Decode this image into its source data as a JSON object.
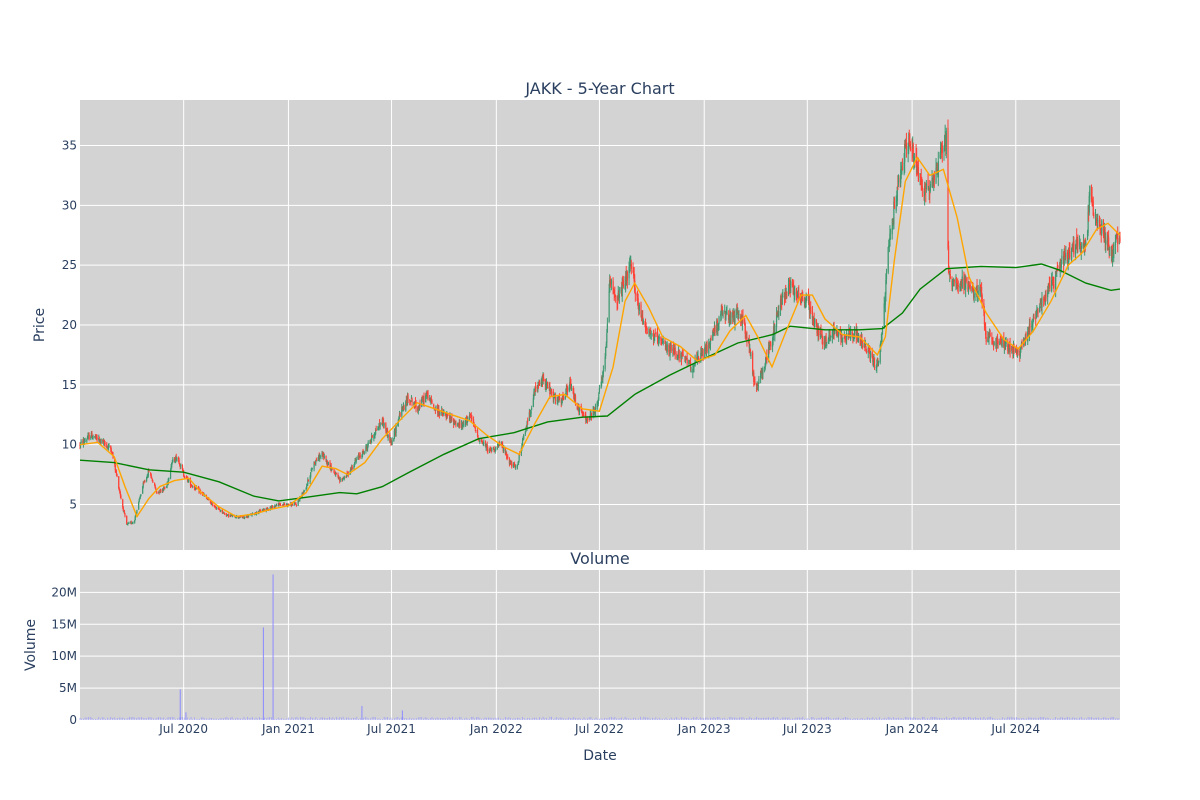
{
  "chart_data": {
    "type": "candlestick",
    "title": "JAKK - 5-Year Chart",
    "ylabel": "Price",
    "volume_title": "Volume",
    "volume_ylabel": "Volume",
    "xlabel": "Date",
    "x_range": [
      "2020-01-01",
      "2024-12-31"
    ],
    "price_ylim": [
      1.2,
      38.8
    ],
    "price_yticks": [
      5,
      10,
      15,
      20,
      25,
      30,
      35
    ],
    "volume_ylim": [
      0,
      23500000
    ],
    "volume_yticks": [
      0,
      5000000,
      10000000,
      15000000,
      20000000
    ],
    "volume_ytick_labels": [
      "0",
      "5M",
      "10M",
      "15M",
      "20M"
    ],
    "xticks": [
      "2020-07-01",
      "2021-01-01",
      "2021-07-01",
      "2022-01-01",
      "2022-07-01",
      "2023-01-01",
      "2023-07-01",
      "2024-01-01",
      "2024-07-01"
    ],
    "xtick_labels": [
      "Jul 2020",
      "Jan 2021",
      "Jul 2021",
      "Jan 2022",
      "Jul 2022",
      "Jan 2023",
      "Jul 2023",
      "Jan 2024",
      "Jul 2024"
    ],
    "grid": true,
    "colors": {
      "increasing": "#3d9970",
      "decreasing": "#ff4136",
      "ma_short": "#ffa500",
      "ma_long": "#008000",
      "volume_bar": "#8b8bff",
      "plot_bg": "#d3d3d3",
      "grid": "#ffffff",
      "text": "#2a3f5f"
    },
    "price_path": [
      [
        "2020-01-01",
        10.0
      ],
      [
        "2020-01-20",
        10.8
      ],
      [
        "2020-02-10",
        10.2
      ],
      [
        "2020-02-25",
        9.6
      ],
      [
        "2020-03-05",
        7.5
      ],
      [
        "2020-03-15",
        5.0
      ],
      [
        "2020-03-23",
        3.3
      ],
      [
        "2020-04-05",
        3.6
      ],
      [
        "2020-04-20",
        6.5
      ],
      [
        "2020-05-01",
        7.8
      ],
      [
        "2020-05-15",
        6.0
      ],
      [
        "2020-06-01",
        6.5
      ],
      [
        "2020-06-10",
        8.5
      ],
      [
        "2020-06-20",
        9.0
      ],
      [
        "2020-07-01",
        7.5
      ],
      [
        "2020-07-15",
        6.6
      ],
      [
        "2020-08-01",
        6.0
      ],
      [
        "2020-08-20",
        5.0
      ],
      [
        "2020-09-15",
        4.1
      ],
      [
        "2020-10-15",
        3.9
      ],
      [
        "2020-11-15",
        4.5
      ],
      [
        "2020-12-15",
        5.0
      ],
      [
        "2021-01-15",
        5.0
      ],
      [
        "2021-02-01",
        6.5
      ],
      [
        "2021-02-15",
        8.5
      ],
      [
        "2021-03-01",
        9.2
      ],
      [
        "2021-03-15",
        8.2
      ],
      [
        "2021-04-01",
        7.0
      ],
      [
        "2021-04-15",
        7.5
      ],
      [
        "2021-05-01",
        8.8
      ],
      [
        "2021-05-15",
        9.5
      ],
      [
        "2021-06-01",
        11.0
      ],
      [
        "2021-06-15",
        12.0
      ],
      [
        "2021-07-01",
        10.0
      ],
      [
        "2021-07-15",
        12.5
      ],
      [
        "2021-08-01",
        14.0
      ],
      [
        "2021-08-15",
        13.0
      ],
      [
        "2021-09-01",
        14.2
      ],
      [
        "2021-09-15",
        13.0
      ],
      [
        "2021-10-01",
        12.5
      ],
      [
        "2021-11-01",
        11.5
      ],
      [
        "2021-11-15",
        12.5
      ],
      [
        "2021-12-01",
        10.5
      ],
      [
        "2021-12-20",
        9.5
      ],
      [
        "2022-01-10",
        10.0
      ],
      [
        "2022-01-25",
        8.5
      ],
      [
        "2022-02-05",
        8.0
      ],
      [
        "2022-02-20",
        11.0
      ],
      [
        "2022-03-10",
        14.5
      ],
      [
        "2022-03-25",
        15.5
      ],
      [
        "2022-04-10",
        14.0
      ],
      [
        "2022-04-25",
        13.5
      ],
      [
        "2022-05-10",
        15.0
      ],
      [
        "2022-05-25",
        13.0
      ],
      [
        "2022-06-10",
        12.0
      ],
      [
        "2022-06-25",
        13.0
      ],
      [
        "2022-07-10",
        16.5
      ],
      [
        "2022-07-20",
        24.0
      ],
      [
        "2022-08-01",
        22.0
      ],
      [
        "2022-08-15",
        23.5
      ],
      [
        "2022-08-25",
        25.0
      ],
      [
        "2022-09-10",
        21.0
      ],
      [
        "2022-09-25",
        19.5
      ],
      [
        "2022-10-15",
        18.5
      ],
      [
        "2022-11-01",
        18.0
      ],
      [
        "2022-11-20",
        17.5
      ],
      [
        "2022-12-10",
        16.5
      ],
      [
        "2023-01-05",
        18.0
      ],
      [
        "2023-02-01",
        21.0
      ],
      [
        "2023-02-15",
        20.5
      ],
      [
        "2023-03-05",
        21.0
      ],
      [
        "2023-03-20",
        18.5
      ],
      [
        "2023-04-01",
        14.5
      ],
      [
        "2023-04-15",
        16.5
      ],
      [
        "2023-05-01",
        19.0
      ],
      [
        "2023-05-15",
        22.0
      ],
      [
        "2023-06-01",
        23.5
      ],
      [
        "2023-06-15",
        22.5
      ],
      [
        "2023-07-01",
        22.0
      ],
      [
        "2023-07-15",
        20.0
      ],
      [
        "2023-08-01",
        18.5
      ],
      [
        "2023-08-15",
        19.5
      ],
      [
        "2023-09-01",
        19.0
      ],
      [
        "2023-09-20",
        19.5
      ],
      [
        "2023-10-05",
        18.5
      ],
      [
        "2023-10-20",
        17.5
      ],
      [
        "2023-11-01",
        16.5
      ],
      [
        "2023-11-10",
        19.5
      ],
      [
        "2023-11-20",
        26.0
      ],
      [
        "2023-12-01",
        30.0
      ],
      [
        "2023-12-15",
        33.5
      ],
      [
        "2023-12-25",
        35.5
      ],
      [
        "2024-01-10",
        33.0
      ],
      [
        "2024-01-25",
        31.0
      ],
      [
        "2024-02-10",
        32.5
      ],
      [
        "2024-02-20",
        34.5
      ],
      [
        "2024-03-01",
        35.5
      ],
      [
        "2024-03-05",
        24.0
      ],
      [
        "2024-03-20",
        23.5
      ],
      [
        "2024-04-05",
        23.5
      ],
      [
        "2024-04-20",
        22.5
      ],
      [
        "2024-05-01",
        23.0
      ],
      [
        "2024-05-10",
        19.0
      ],
      [
        "2024-05-25",
        18.5
      ],
      [
        "2024-06-10",
        18.5
      ],
      [
        "2024-06-25",
        18.0
      ],
      [
        "2024-07-05",
        17.5
      ],
      [
        "2024-07-20",
        19.0
      ],
      [
        "2024-08-05",
        21.0
      ],
      [
        "2024-08-20",
        22.5
      ],
      [
        "2024-09-05",
        23.5
      ],
      [
        "2024-09-20",
        25.5
      ],
      [
        "2024-10-05",
        26.0
      ],
      [
        "2024-10-20",
        27.0
      ],
      [
        "2024-11-01",
        26.5
      ],
      [
        "2024-11-08",
        31.0
      ],
      [
        "2024-11-20",
        28.5
      ],
      [
        "2024-12-01",
        28.0
      ],
      [
        "2024-12-15",
        26.0
      ],
      [
        "2024-12-31",
        27.5
      ]
    ],
    "ma_short": [
      [
        "2020-01-01",
        10.0
      ],
      [
        "2020-02-01",
        10.2
      ],
      [
        "2020-03-01",
        9.0
      ],
      [
        "2020-03-20",
        6.5
      ],
      [
        "2020-04-10",
        4.0
      ],
      [
        "2020-05-01",
        5.5
      ],
      [
        "2020-05-20",
        6.5
      ],
      [
        "2020-06-15",
        7.0
      ],
      [
        "2020-07-10",
        7.2
      ],
      [
        "2020-08-01",
        6.0
      ],
      [
        "2020-09-01",
        4.8
      ],
      [
        "2020-10-01",
        4.0
      ],
      [
        "2020-11-01",
        4.2
      ],
      [
        "2020-12-01",
        4.6
      ],
      [
        "2021-01-01",
        4.9
      ],
      [
        "2021-02-01",
        6.0
      ],
      [
        "2021-03-01",
        8.2
      ],
      [
        "2021-03-25",
        8.0
      ],
      [
        "2021-04-15",
        7.5
      ],
      [
        "2021-05-15",
        8.5
      ],
      [
        "2021-06-15",
        10.5
      ],
      [
        "2021-07-15",
        12.0
      ],
      [
        "2021-08-15",
        13.5
      ],
      [
        "2021-09-15",
        13.0
      ],
      [
        "2021-10-15",
        12.5
      ],
      [
        "2021-11-15",
        12.0
      ],
      [
        "2021-12-15",
        10.8
      ],
      [
        "2022-01-15",
        9.8
      ],
      [
        "2022-02-10",
        9.2
      ],
      [
        "2022-03-10",
        11.8
      ],
      [
        "2022-04-05",
        14.0
      ],
      [
        "2022-05-01",
        14.2
      ],
      [
        "2022-06-01",
        13.0
      ],
      [
        "2022-07-01",
        12.8
      ],
      [
        "2022-07-25",
        16.5
      ],
      [
        "2022-08-15",
        22.0
      ],
      [
        "2022-09-01",
        23.5
      ],
      [
        "2022-09-25",
        21.5
      ],
      [
        "2022-10-20",
        19.0
      ],
      [
        "2022-11-20",
        18.2
      ],
      [
        "2022-12-20",
        17.0
      ],
      [
        "2023-01-20",
        17.5
      ],
      [
        "2023-02-15",
        19.5
      ],
      [
        "2023-03-15",
        20.8
      ],
      [
        "2023-04-05",
        19.0
      ],
      [
        "2023-04-30",
        16.5
      ],
      [
        "2023-05-25",
        19.5
      ],
      [
        "2023-06-20",
        22.5
      ],
      [
        "2023-07-10",
        22.5
      ],
      [
        "2023-08-01",
        20.5
      ],
      [
        "2023-09-01",
        19.2
      ],
      [
        "2023-10-01",
        19.0
      ],
      [
        "2023-11-01",
        17.5
      ],
      [
        "2023-11-15",
        19.0
      ],
      [
        "2023-12-01",
        25.5
      ],
      [
        "2023-12-20",
        32.0
      ],
      [
        "2024-01-10",
        34.0
      ],
      [
        "2024-02-01",
        32.5
      ],
      [
        "2024-02-25",
        33.0
      ],
      [
        "2024-03-20",
        29.0
      ],
      [
        "2024-04-10",
        24.0
      ],
      [
        "2024-05-10",
        21.0
      ],
      [
        "2024-06-10",
        18.8
      ],
      [
        "2024-07-05",
        18.0
      ],
      [
        "2024-08-01",
        19.5
      ],
      [
        "2024-09-01",
        22.0
      ],
      [
        "2024-10-01",
        25.0
      ],
      [
        "2024-10-25",
        26.0
      ],
      [
        "2024-11-20",
        28.0
      ],
      [
        "2024-12-10",
        28.5
      ],
      [
        "2024-12-31",
        27.5
      ]
    ],
    "ma_long": [
      [
        "2020-01-01",
        8.7
      ],
      [
        "2020-03-01",
        8.5
      ],
      [
        "2020-05-01",
        7.9
      ],
      [
        "2020-07-01",
        7.7
      ],
      [
        "2020-09-01",
        6.9
      ],
      [
        "2020-11-01",
        5.7
      ],
      [
        "2020-12-15",
        5.3
      ],
      [
        "2021-02-01",
        5.6
      ],
      [
        "2021-04-01",
        6.0
      ],
      [
        "2021-05-01",
        5.9
      ],
      [
        "2021-06-15",
        6.5
      ],
      [
        "2021-08-01",
        7.7
      ],
      [
        "2021-10-01",
        9.2
      ],
      [
        "2021-12-01",
        10.5
      ],
      [
        "2022-02-01",
        11.0
      ],
      [
        "2022-04-01",
        11.9
      ],
      [
        "2022-06-01",
        12.3
      ],
      [
        "2022-07-15",
        12.4
      ],
      [
        "2022-09-01",
        14.2
      ],
      [
        "2022-11-01",
        15.8
      ],
      [
        "2023-01-01",
        17.2
      ],
      [
        "2023-03-01",
        18.5
      ],
      [
        "2023-05-01",
        19.2
      ],
      [
        "2023-06-01",
        19.9
      ],
      [
        "2023-08-01",
        19.6
      ],
      [
        "2023-10-01",
        19.6
      ],
      [
        "2023-11-10",
        19.7
      ],
      [
        "2023-12-15",
        21.0
      ],
      [
        "2024-01-15",
        23.0
      ],
      [
        "2024-03-01",
        24.7
      ],
      [
        "2024-05-01",
        24.9
      ],
      [
        "2024-07-01",
        24.8
      ],
      [
        "2024-08-15",
        25.1
      ],
      [
        "2024-09-15",
        24.6
      ],
      [
        "2024-11-01",
        23.5
      ],
      [
        "2024-12-15",
        22.9
      ],
      [
        "2024-12-31",
        23.0
      ]
    ],
    "volume_spikes": [
      [
        "2020-06-25",
        4800000
      ],
      [
        "2020-07-05",
        1200000
      ],
      [
        "2020-11-18",
        14500000
      ],
      [
        "2020-12-05",
        22800000
      ],
      [
        "2021-05-10",
        2200000
      ],
      [
        "2021-07-20",
        1500000
      ]
    ]
  }
}
